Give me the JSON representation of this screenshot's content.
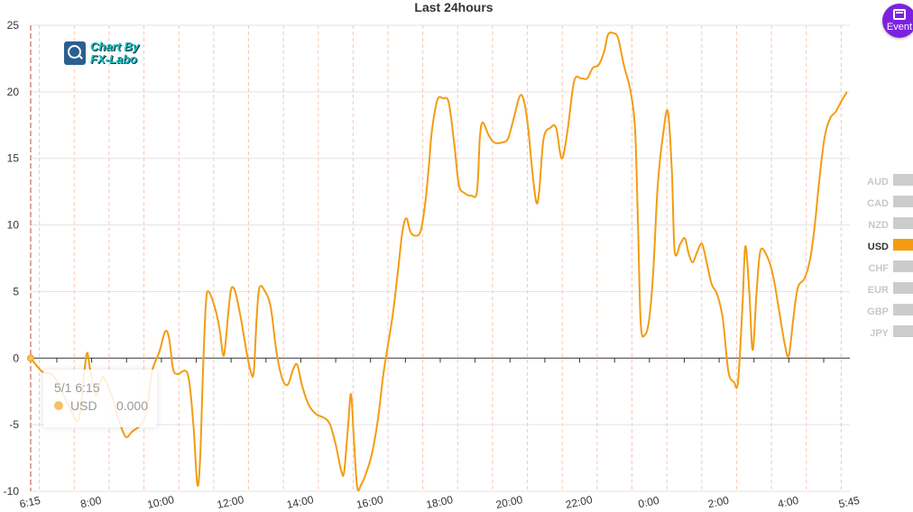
{
  "chart_data": {
    "type": "line",
    "title": "Last 24hours",
    "ylim": [
      -10,
      25
    ],
    "yticks": [
      -10,
      -5,
      0,
      5,
      10,
      15,
      20,
      25
    ],
    "xticks": [
      "6:15",
      "8:00",
      "10:00",
      "12:00",
      "14:00",
      "16:00",
      "18:00",
      "20:00",
      "22:00",
      "0:00",
      "2:00",
      "4:00",
      "5:45"
    ],
    "grid": true,
    "series": [
      {
        "name": "USD",
        "color": "#f39c12",
        "points": [
          [
            0.0,
            0.0
          ],
          [
            0.2,
            -1.0
          ],
          [
            0.4,
            -1.3
          ],
          [
            0.55,
            -2.5
          ],
          [
            0.7,
            -3.8
          ],
          [
            0.85,
            -4.6
          ],
          [
            0.95,
            -1.0
          ],
          [
            1.0,
            0.4
          ],
          [
            1.05,
            -0.8
          ],
          [
            1.15,
            -2.8
          ],
          [
            1.25,
            -1.6
          ],
          [
            1.3,
            -1.5
          ],
          [
            1.45,
            -3.0
          ],
          [
            1.55,
            -4.5
          ],
          [
            1.68,
            -5.9
          ],
          [
            1.8,
            -5.5
          ],
          [
            1.95,
            -5.0
          ],
          [
            2.05,
            -4.0
          ],
          [
            2.15,
            -1.0
          ],
          [
            2.28,
            0.5
          ],
          [
            2.38,
            2.0
          ],
          [
            2.45,
            1.5
          ],
          [
            2.52,
            -0.8
          ],
          [
            2.6,
            -1.2
          ],
          [
            2.78,
            -1.2
          ],
          [
            2.88,
            -5.0
          ],
          [
            2.95,
            -9.5
          ],
          [
            3.0,
            -7.5
          ],
          [
            3.05,
            -1.0
          ],
          [
            3.1,
            4.0
          ],
          [
            3.15,
            5.0
          ],
          [
            3.28,
            3.5
          ],
          [
            3.35,
            2.0
          ],
          [
            3.42,
            0.2
          ],
          [
            3.5,
            3.5
          ],
          [
            3.55,
            5.2
          ],
          [
            3.62,
            5.0
          ],
          [
            3.72,
            3.0
          ],
          [
            3.82,
            0.5
          ],
          [
            3.9,
            -1.1
          ],
          [
            3.95,
            -1.0
          ],
          [
            4.0,
            3.0
          ],
          [
            4.05,
            5.3
          ],
          [
            4.15,
            5.0
          ],
          [
            4.25,
            3.8
          ],
          [
            4.35,
            0.5
          ],
          [
            4.45,
            -1.5
          ],
          [
            4.55,
            -2.0
          ],
          [
            4.65,
            -0.8
          ],
          [
            4.72,
            -0.5
          ],
          [
            4.8,
            -2.0
          ],
          [
            4.92,
            -3.5
          ],
          [
            5.05,
            -4.2
          ],
          [
            5.2,
            -4.5
          ],
          [
            5.3,
            -5.0
          ],
          [
            5.4,
            -6.5
          ],
          [
            5.5,
            -8.5
          ],
          [
            5.55,
            -8.5
          ],
          [
            5.62,
            -5.0
          ],
          [
            5.67,
            -2.7
          ],
          [
            5.72,
            -6.0
          ],
          [
            5.78,
            -9.7
          ],
          [
            5.85,
            -9.5
          ],
          [
            5.95,
            -8.5
          ],
          [
            6.05,
            -7.0
          ],
          [
            6.15,
            -4.5
          ],
          [
            6.25,
            -1.0
          ],
          [
            6.4,
            3.0
          ],
          [
            6.5,
            6.5
          ],
          [
            6.58,
            9.5
          ],
          [
            6.65,
            10.5
          ],
          [
            6.72,
            9.5
          ],
          [
            6.8,
            9.2
          ],
          [
            6.9,
            9.5
          ],
          [
            6.98,
            11.5
          ],
          [
            7.05,
            14.5
          ],
          [
            7.1,
            17.0
          ],
          [
            7.2,
            19.4
          ],
          [
            7.3,
            19.5
          ],
          [
            7.4,
            19.2
          ],
          [
            7.5,
            16.0
          ],
          [
            7.58,
            13.0
          ],
          [
            7.68,
            12.4
          ],
          [
            7.8,
            12.2
          ],
          [
            7.9,
            12.5
          ],
          [
            7.95,
            16.5
          ],
          [
            8.0,
            17.7
          ],
          [
            8.1,
            16.8
          ],
          [
            8.2,
            16.2
          ],
          [
            8.35,
            16.2
          ],
          [
            8.45,
            16.5
          ],
          [
            8.55,
            18.0
          ],
          [
            8.65,
            19.6
          ],
          [
            8.72,
            19.5
          ],
          [
            8.8,
            17.5
          ],
          [
            8.88,
            14.0
          ],
          [
            8.95,
            11.7
          ],
          [
            9.0,
            12.5
          ],
          [
            9.08,
            16.5
          ],
          [
            9.2,
            17.3
          ],
          [
            9.3,
            17.3
          ],
          [
            9.4,
            15.0
          ],
          [
            9.5,
            17.0
          ],
          [
            9.62,
            20.8
          ],
          [
            9.75,
            21.0
          ],
          [
            9.85,
            21.0
          ],
          [
            9.95,
            21.8
          ],
          [
            10.05,
            22.0
          ],
          [
            10.15,
            23.0
          ],
          [
            10.22,
            24.3
          ],
          [
            10.32,
            24.4
          ],
          [
            10.4,
            24.0
          ],
          [
            10.5,
            22.0
          ],
          [
            10.62,
            20.0
          ],
          [
            10.7,
            17.0
          ],
          [
            10.75,
            10.0
          ],
          [
            10.8,
            2.5
          ],
          [
            10.88,
            1.8
          ],
          [
            10.95,
            3.0
          ],
          [
            11.02,
            6.5
          ],
          [
            11.1,
            13.0
          ],
          [
            11.2,
            17.0
          ],
          [
            11.28,
            18.5
          ],
          [
            11.35,
            14.0
          ],
          [
            11.4,
            8.0
          ],
          [
            11.5,
            8.6
          ],
          [
            11.58,
            9.0
          ],
          [
            11.65,
            7.8
          ],
          [
            11.72,
            7.2
          ],
          [
            11.8,
            8.0
          ],
          [
            11.88,
            8.6
          ],
          [
            11.95,
            7.5
          ],
          [
            12.05,
            5.6
          ],
          [
            12.15,
            4.8
          ],
          [
            12.25,
            3.0
          ],
          [
            12.35,
            -1.0
          ],
          [
            12.45,
            -1.8
          ],
          [
            12.52,
            -1.8
          ],
          [
            12.6,
            4.0
          ],
          [
            12.65,
            8.4
          ],
          [
            12.72,
            5.0
          ],
          [
            12.78,
            0.6
          ],
          [
            12.85,
            5.0
          ],
          [
            12.92,
            8.1
          ],
          [
            13.05,
            7.5
          ],
          [
            13.15,
            6.0
          ],
          [
            13.25,
            3.5
          ],
          [
            13.35,
            1.0
          ],
          [
            13.42,
            0.2
          ],
          [
            13.5,
            3.0
          ],
          [
            13.58,
            5.3
          ],
          [
            13.7,
            6.0
          ],
          [
            13.8,
            7.5
          ],
          [
            13.88,
            10.0
          ],
          [
            13.95,
            13.0
          ],
          [
            14.05,
            16.5
          ],
          [
            14.15,
            18.0
          ],
          [
            14.25,
            18.5
          ],
          [
            14.35,
            19.3
          ],
          [
            14.45,
            20.0
          ]
        ]
      }
    ],
    "legend": {
      "position": "right",
      "items": [
        "AUD",
        "CAD",
        "NZD",
        "USD",
        "CHF",
        "EUR",
        "GBP",
        "JPY"
      ],
      "active": "USD"
    },
    "tooltip": {
      "time": "5/1 6:15",
      "series": "USD",
      "value": "0.000"
    }
  },
  "logo": {
    "line1": "Chart By",
    "line2": "FX-Labo"
  },
  "event_button": {
    "label": "Event"
  }
}
